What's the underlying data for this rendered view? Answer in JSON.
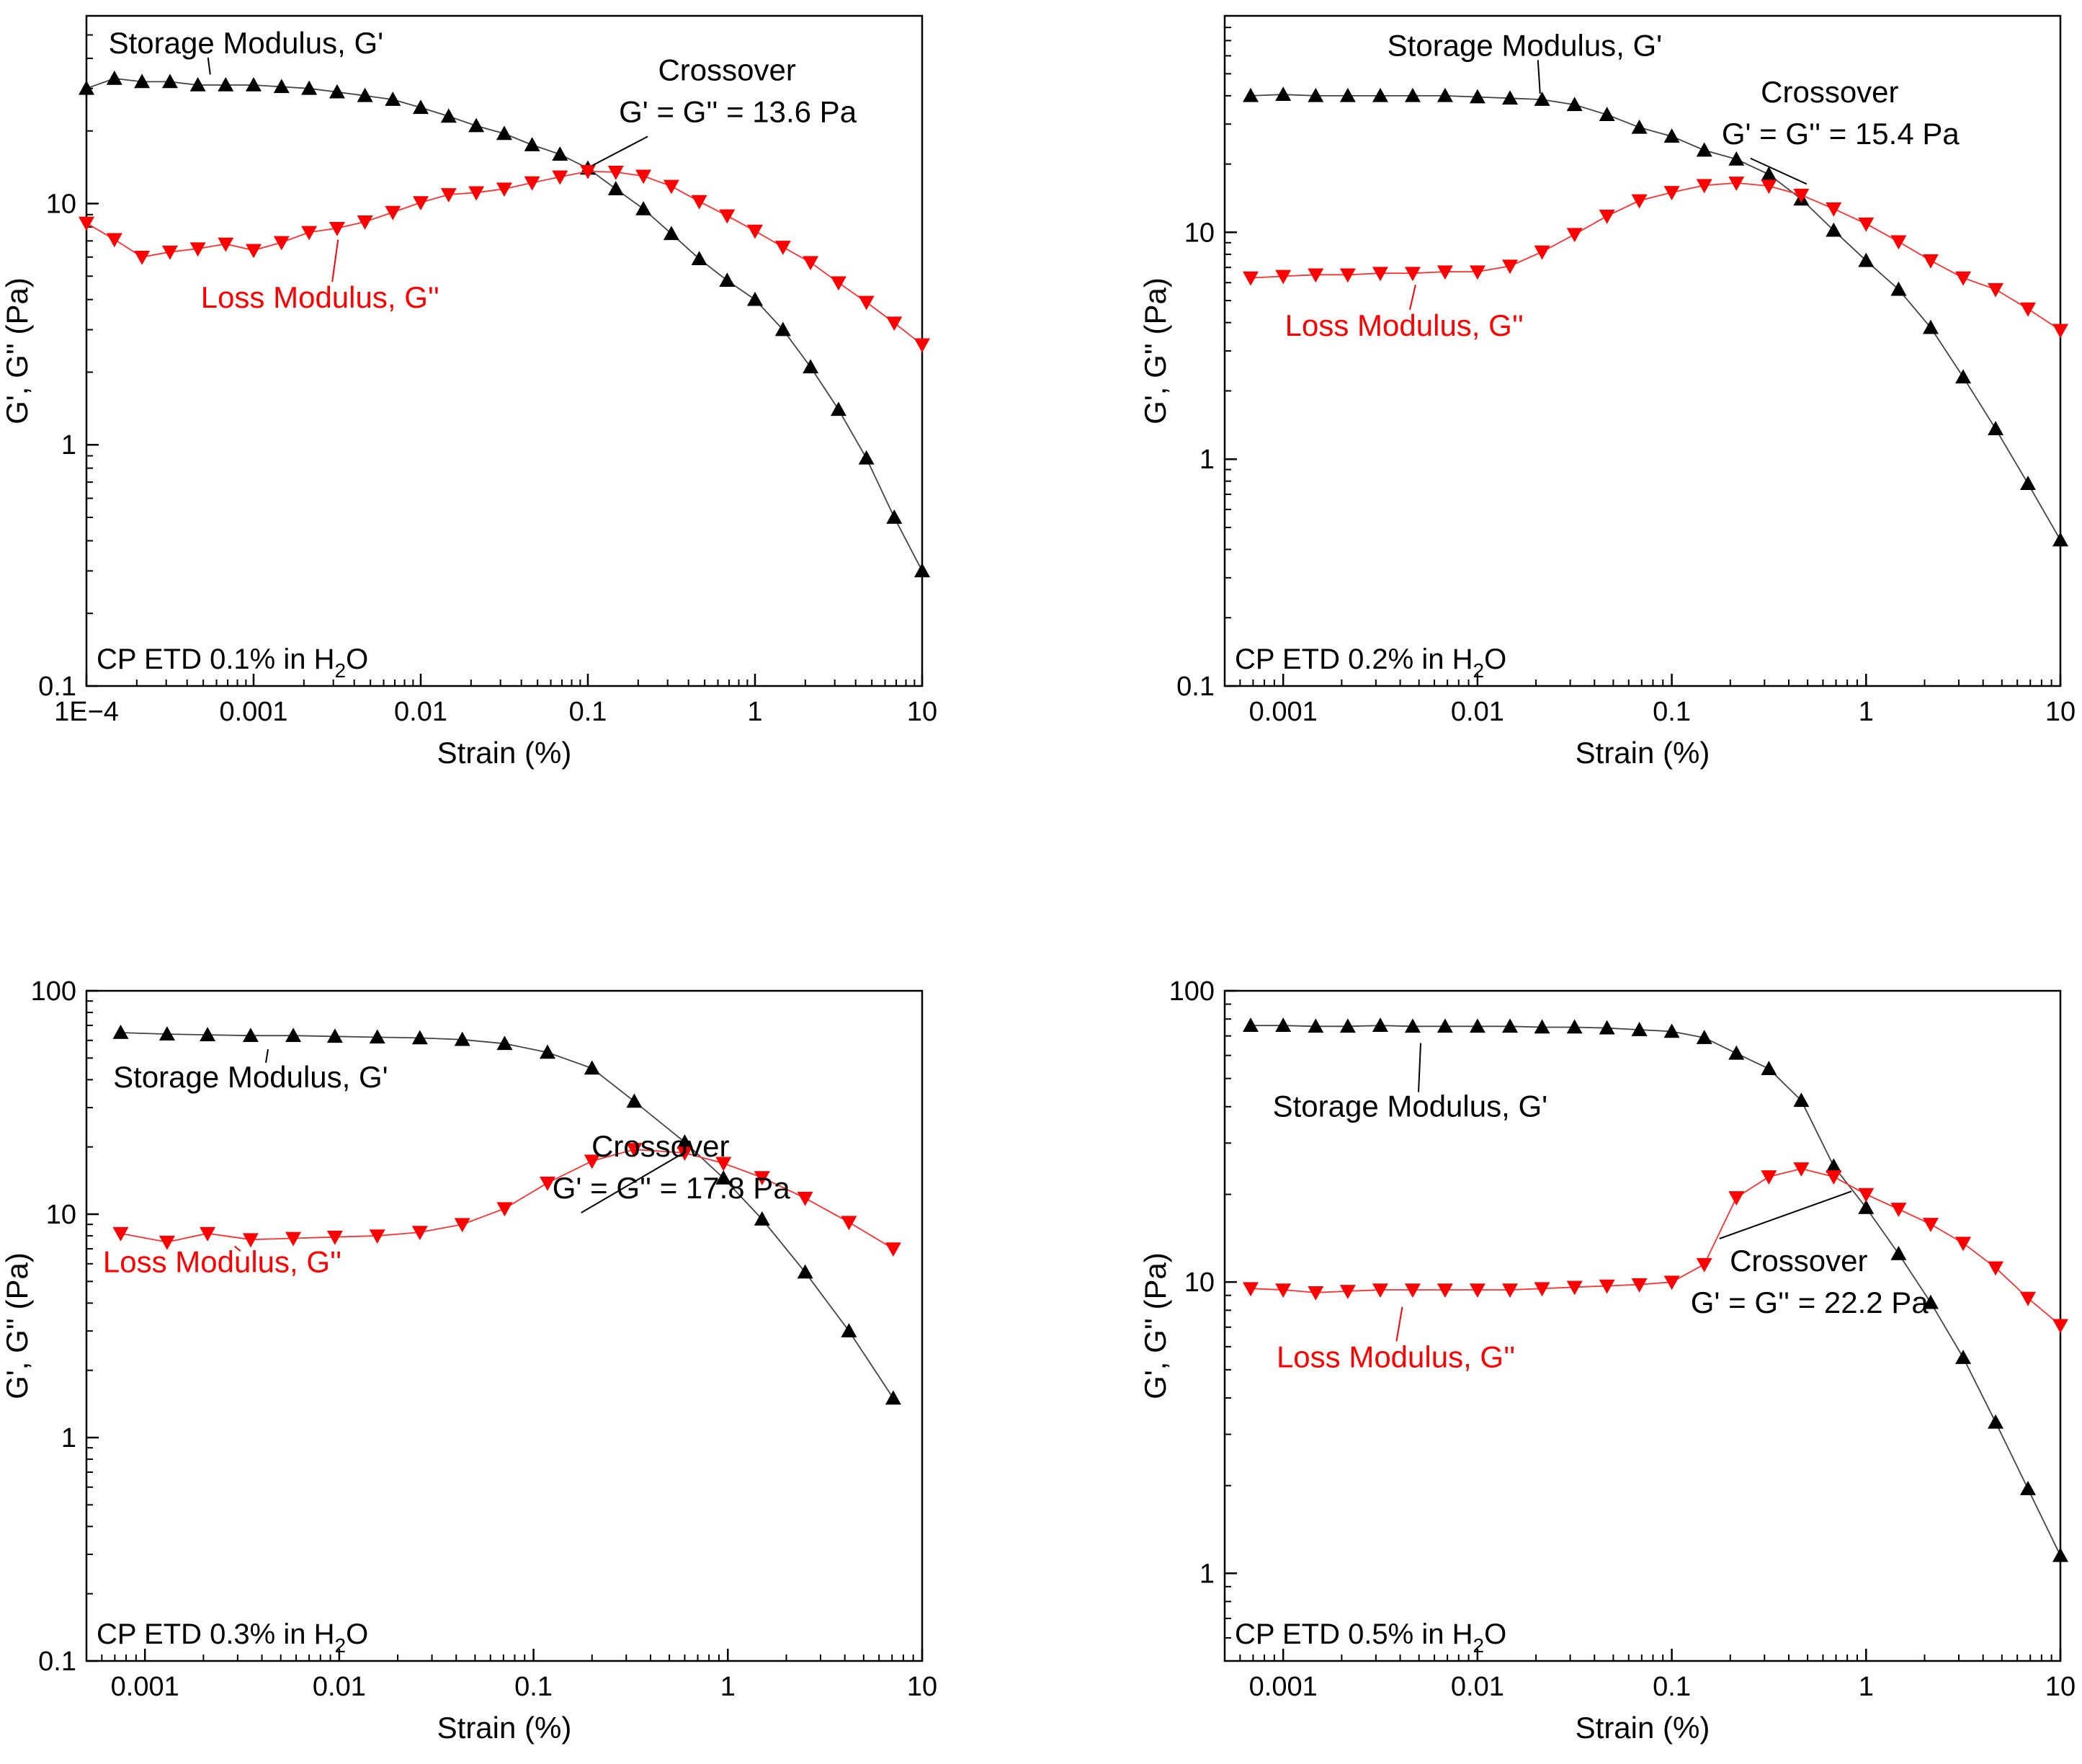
{
  "colors": {
    "storage": "#000000",
    "loss": "#ff0000",
    "axis": "#000000",
    "line_storage": "#444444",
    "line_loss": "#ff3030"
  },
  "chart_data": [
    {
      "type": "line",
      "scale": "log-log",
      "xlabel": "Strain (%)",
      "ylabel": "G', G'' (Pa)",
      "xlim": [
        0.0001,
        10
      ],
      "ylim": [
        0.1,
        60
      ],
      "xticks": [
        {
          "v": 0.0001,
          "t": "1E−4"
        },
        {
          "v": 0.001,
          "t": "0.001"
        },
        {
          "v": 0.01,
          "t": "0.01"
        },
        {
          "v": 0.1,
          "t": "0.1"
        },
        {
          "v": 1,
          "t": "1"
        },
        {
          "v": 10,
          "t": "10"
        }
      ],
      "yticks": [
        {
          "v": 0.1,
          "t": "0.1"
        },
        {
          "v": 1,
          "t": "1"
        },
        {
          "v": 10,
          "t": "10"
        }
      ],
      "sample_main": "CP ETD 0.1% in H",
      "sample_sub": "2",
      "sample_end": "O",
      "crossover_title": "Crossover",
      "crossover_text": "G' = G'' = 13.6 Pa",
      "series": [
        {
          "name": "Storage Modulus, G'",
          "marker": "triangle-up",
          "x": [
            0.0001,
            0.000147,
            0.000215,
            0.000316,
            0.000464,
            0.000681,
            0.001,
            0.00147,
            0.00215,
            0.00316,
            0.00464,
            0.00681,
            0.01,
            0.0147,
            0.0215,
            0.0316,
            0.0464,
            0.0681,
            0.1,
            0.147,
            0.215,
            0.316,
            0.464,
            0.681,
            1,
            1.47,
            2.15,
            3.16,
            4.64,
            6.81,
            10
          ],
          "values": [
            30,
            33,
            32,
            32,
            31,
            31,
            31,
            30.5,
            30,
            29,
            28,
            27,
            25,
            23,
            21,
            19.5,
            17.5,
            16,
            14,
            11.5,
            9.5,
            7.5,
            5.9,
            4.8,
            4,
            3,
            2.1,
            1.4,
            0.88,
            0.5,
            0.3
          ]
        },
        {
          "name": "Loss Modulus, G''",
          "marker": "triangle-down",
          "x": [
            0.0001,
            0.000147,
            0.000215,
            0.000316,
            0.000464,
            0.000681,
            0.001,
            0.00147,
            0.00215,
            0.00316,
            0.00464,
            0.00681,
            0.01,
            0.0147,
            0.0215,
            0.0316,
            0.0464,
            0.0681,
            0.1,
            0.147,
            0.215,
            0.316,
            0.464,
            0.681,
            1,
            1.47,
            2.15,
            3.16,
            4.64,
            6.81,
            10
          ],
          "values": [
            8.3,
            7.1,
            6,
            6.3,
            6.5,
            6.8,
            6.4,
            6.9,
            7.6,
            7.9,
            8.4,
            9.2,
            10.1,
            10.9,
            11.1,
            11.5,
            12.2,
            12.9,
            13.6,
            13.5,
            13,
            11.8,
            10.2,
            8.9,
            7.7,
            6.6,
            5.7,
            4.7,
            3.9,
            3.2,
            2.6
          ]
        }
      ],
      "callouts": {
        "storage": {
          "label_x": 0.0009,
          "label_y": 42,
          "point_x": 0.00055,
          "point_y": 32
        },
        "loss": {
          "label_x": 0.0025,
          "label_y": 3.7,
          "point_x": 0.0032,
          "point_y": 7.9
        },
        "crossover": {
          "label_x": 0.68,
          "label_y": 23,
          "point_x": 0.1,
          "point_y": 13.6
        }
      }
    },
    {
      "type": "line",
      "scale": "log-log",
      "xlabel": "Strain (%)",
      "ylabel": "G', G'' (Pa)",
      "xlim": [
        0.0005,
        10
      ],
      "ylim": [
        0.1,
        90
      ],
      "xticks": [
        {
          "v": 0.001,
          "t": "0.001"
        },
        {
          "v": 0.01,
          "t": "0.01"
        },
        {
          "v": 0.1,
          "t": "0.1"
        },
        {
          "v": 1,
          "t": "1"
        },
        {
          "v": 10,
          "t": "10"
        }
      ],
      "yticks": [
        {
          "v": 0.1,
          "t": "0.1"
        },
        {
          "v": 1,
          "t": "1"
        },
        {
          "v": 10,
          "t": "10"
        }
      ],
      "sample_main": "CP ETD 0.2% in H",
      "sample_sub": "2",
      "sample_end": "O",
      "crossover_title": "Crossover",
      "crossover_text": "G' = G'' = 15.4 Pa",
      "series": [
        {
          "name": "Storage Modulus, G'",
          "marker": "triangle-up",
          "x": [
            0.00068,
            0.001,
            0.00147,
            0.00215,
            0.00316,
            0.00464,
            0.00681,
            0.01,
            0.0147,
            0.0215,
            0.0316,
            0.0464,
            0.0681,
            0.1,
            0.147,
            0.215,
            0.316,
            0.464,
            0.681,
            1,
            1.47,
            2.15,
            3.16,
            4.64,
            6.81,
            10
          ],
          "values": [
            40,
            40.5,
            40,
            40,
            40,
            40,
            40,
            39.5,
            39,
            38.5,
            36.5,
            33,
            29,
            26.5,
            23,
            21,
            18,
            14,
            10.2,
            7.5,
            5.6,
            3.8,
            2.3,
            1.36,
            0.78,
            0.44
          ]
        },
        {
          "name": "Loss Modulus, G''",
          "marker": "triangle-down",
          "x": [
            0.00068,
            0.001,
            0.00147,
            0.00215,
            0.00316,
            0.00464,
            0.00681,
            0.01,
            0.0147,
            0.0215,
            0.0316,
            0.0464,
            0.0681,
            0.1,
            0.147,
            0.215,
            0.316,
            0.464,
            0.681,
            1,
            1.47,
            2.15,
            3.16,
            4.64,
            6.81,
            10
          ],
          "values": [
            6.3,
            6.4,
            6.5,
            6.5,
            6.6,
            6.6,
            6.7,
            6.7,
            7.1,
            8.2,
            9.8,
            11.8,
            13.8,
            15,
            16.1,
            16.5,
            16,
            14.6,
            12.7,
            10.9,
            9.1,
            7.5,
            6.3,
            5.6,
            4.6,
            3.7
          ]
        }
      ],
      "callouts": {
        "storage": {
          "label_x": 0.0175,
          "label_y": 60,
          "point_x": 0.021,
          "point_y": 38
        },
        "loss": {
          "label_x": 0.0042,
          "label_y": 3.5,
          "point_x": 0.0048,
          "point_y": 6.6
        },
        "crossover": {
          "label_x": 0.65,
          "label_y": 26,
          "point_x": 0.47,
          "point_y": 15.4
        }
      }
    },
    {
      "type": "line",
      "scale": "log-log",
      "xlabel": "Strain (%)",
      "ylabel": "G', G'' (Pa)",
      "xlim": [
        0.0005,
        10
      ],
      "ylim": [
        0.1,
        100
      ],
      "xticks": [
        {
          "v": 0.001,
          "t": "0.001"
        },
        {
          "v": 0.01,
          "t": "0.01"
        },
        {
          "v": 0.1,
          "t": "0.1"
        },
        {
          "v": 1,
          "t": "1"
        },
        {
          "v": 10,
          "t": "10"
        }
      ],
      "yticks": [
        {
          "v": 0.1,
          "t": "0.1"
        },
        {
          "v": 1,
          "t": "1"
        },
        {
          "v": 10,
          "t": "10"
        },
        {
          "v": 100,
          "t": "100"
        }
      ],
      "sample_main": "CP ETD 0.3% in H",
      "sample_sub": "2",
      "sample_end": "O",
      "crossover_title": "Crossover",
      "crossover_text": "G' = G'' = 17.8 Pa",
      "series": [
        {
          "name": "Storage Modulus, G'",
          "marker": "triangle-up",
          "x": [
            0.00075,
            0.0013,
            0.0021,
            0.0035,
            0.0058,
            0.0095,
            0.0157,
            0.026,
            0.043,
            0.071,
            0.118,
            0.2,
            0.33,
            0.6,
            0.95,
            1.5,
            2.5,
            4.2,
            7.1
          ],
          "values": [
            65,
            64,
            63.5,
            63,
            63,
            62.5,
            62,
            61.5,
            60.5,
            58,
            53,
            45,
            32,
            21,
            14.5,
            9.5,
            5.5,
            3,
            1.5
          ]
        },
        {
          "name": "Loss Modulus, G''",
          "marker": "triangle-down",
          "x": [
            0.00075,
            0.0013,
            0.0021,
            0.0035,
            0.0058,
            0.0095,
            0.0157,
            0.026,
            0.043,
            0.071,
            0.118,
            0.2,
            0.33,
            0.6,
            0.95,
            1.5,
            2.5,
            4.2,
            7.1
          ],
          "values": [
            8.2,
            7.5,
            8.2,
            7.7,
            7.8,
            7.9,
            8,
            8.3,
            9,
            10.6,
            13.8,
            17.3,
            19.5,
            18.8,
            16.9,
            14.6,
            11.8,
            9.2,
            7
          ]
        }
      ],
      "callouts": {
        "storage": {
          "label_x": 0.0035,
          "label_y": 37,
          "point_x": 0.0043,
          "point_y": 59
        },
        "loss": {
          "label_x": 0.0025,
          "label_y": 5.5,
          "point_x": 0.0031,
          "point_y": 7.7
        },
        "crossover": {
          "label_x": 0.45,
          "label_y": 12.5,
          "point_x": 0.58,
          "point_y": 18
        }
      }
    },
    {
      "type": "line",
      "scale": "log-log",
      "xlabel": "Strain (%)",
      "ylabel": "G', G'' (Pa)",
      "xlim": [
        0.0005,
        10
      ],
      "ylim": [
        0.5,
        100
      ],
      "xticks": [
        {
          "v": 0.001,
          "t": "0.001"
        },
        {
          "v": 0.01,
          "t": "0.01"
        },
        {
          "v": 0.1,
          "t": "0.1"
        },
        {
          "v": 1,
          "t": "1"
        },
        {
          "v": 10,
          "t": "10"
        }
      ],
      "yticks": [
        {
          "v": 1,
          "t": "1"
        },
        {
          "v": 10,
          "t": "10"
        },
        {
          "v": 100,
          "t": "100"
        }
      ],
      "sample_main": "CP ETD 0.5% in H",
      "sample_sub": "2",
      "sample_end": "O",
      "crossover_title": "Crossover",
      "crossover_text": "G' = G'' = 22.2 Pa",
      "series": [
        {
          "name": "Storage Modulus, G'",
          "marker": "triangle-up",
          "x": [
            0.00068,
            0.001,
            0.00147,
            0.00215,
            0.00316,
            0.00464,
            0.00681,
            0.01,
            0.0147,
            0.0215,
            0.0316,
            0.0464,
            0.0681,
            0.1,
            0.147,
            0.215,
            0.316,
            0.464,
            0.681,
            1,
            1.47,
            2.15,
            3.16,
            4.64,
            6.81,
            10
          ],
          "values": [
            76,
            76,
            75.5,
            75.5,
            76,
            75.5,
            75.5,
            75.5,
            75.5,
            75,
            75,
            74.5,
            73.5,
            72.5,
            69,
            61,
            54,
            42,
            25,
            18,
            12.5,
            8.5,
            5.5,
            3.3,
            1.95,
            1.15
          ]
        },
        {
          "name": "Loss Modulus, G''",
          "marker": "triangle-down",
          "x": [
            0.00068,
            0.001,
            0.00147,
            0.00215,
            0.00316,
            0.00464,
            0.00681,
            0.01,
            0.0147,
            0.0215,
            0.0316,
            0.0464,
            0.0681,
            0.1,
            0.147,
            0.215,
            0.316,
            0.464,
            0.681,
            1,
            1.47,
            2.15,
            3.16,
            4.64,
            6.81,
            10
          ],
          "values": [
            9.5,
            9.4,
            9.2,
            9.3,
            9.4,
            9.4,
            9.4,
            9.4,
            9.4,
            9.5,
            9.6,
            9.7,
            9.8,
            10,
            11.5,
            19.5,
            23,
            24.5,
            23,
            20,
            17.8,
            15.8,
            13.6,
            11.2,
            8.8,
            7.1
          ]
        }
      ],
      "callouts": {
        "storage": {
          "label_x": 0.0045,
          "label_y": 37,
          "point_x": 0.0051,
          "point_y": 70
        },
        "loss": {
          "label_x": 0.0038,
          "label_y": 5.1,
          "point_x": 0.0041,
          "point_y": 9
        },
        "crossover": {
          "label_x": 0.45,
          "label_y": 8.2,
          "point_x": 0.8,
          "point_y": 22.2
        }
      }
    }
  ]
}
